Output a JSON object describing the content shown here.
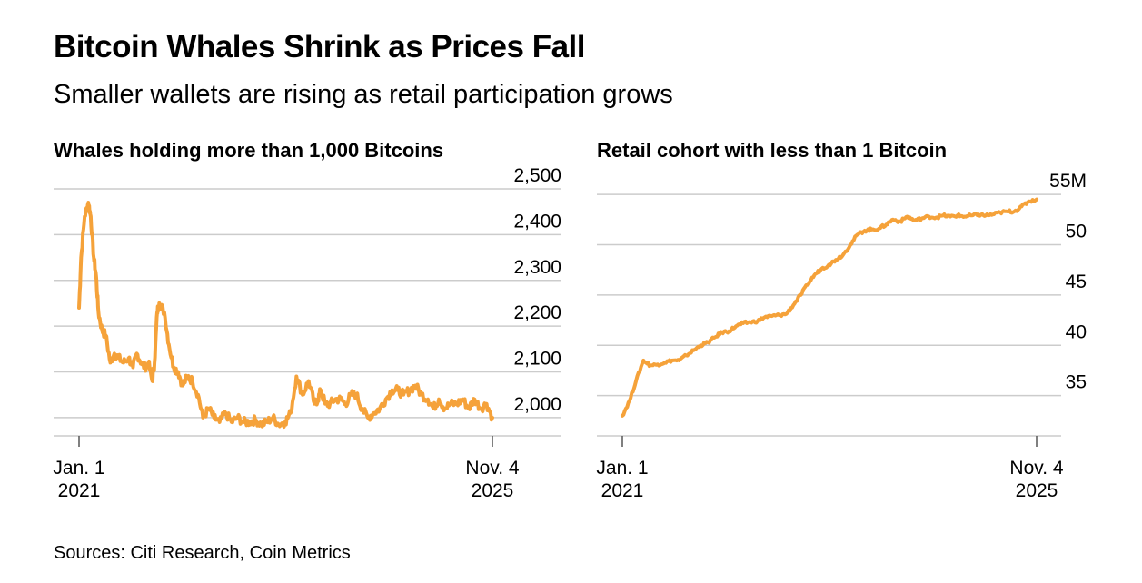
{
  "title": "Bitcoin Whales Shrink as Prices Fall",
  "subtitle": "Smaller wallets are rising as retail participation grows",
  "source": "Sources: Citi Research, Coin Metrics",
  "colors": {
    "line": "#F5A23A",
    "grid": "#cccccc",
    "axis": "#555555",
    "text": "#000000"
  },
  "chart_data": [
    {
      "type": "line",
      "title": "Whales holding more than 1,000 Bitcoins",
      "xlabel": "",
      "ylabel": "",
      "x_range": [
        "2021-01-01",
        "2025-11-04"
      ],
      "x_ticks": [
        {
          "line1": "Jan. 1",
          "line2": "2021"
        },
        {
          "line1": "Nov. 4",
          "line2": "2025"
        }
      ],
      "ylim": [
        1960,
        2510
      ],
      "y_ticks": [
        2000,
        2100,
        2200,
        2300,
        2400,
        2500
      ],
      "y_tick_labels": [
        "2,000",
        "2,100",
        "2,200",
        "2,300",
        "2,400",
        "2,500"
      ],
      "grid": true,
      "series": [
        {
          "x": [
            "2021-01-01",
            "2021-01-10",
            "2021-01-25",
            "2021-02-10",
            "2021-02-20",
            "2021-03-05",
            "2021-03-15",
            "2021-03-25",
            "2021-04-10",
            "2021-04-25",
            "2021-05-15",
            "2021-06-01",
            "2021-06-20",
            "2021-07-10",
            "2021-08-01",
            "2021-08-20",
            "2021-09-05",
            "2021-09-25",
            "2021-10-10",
            "2021-10-25",
            "2021-11-10",
            "2021-11-20",
            "2021-12-01",
            "2021-12-10",
            "2022-01-01",
            "2022-01-20",
            "2022-02-10",
            "2022-03-01",
            "2022-03-20",
            "2022-04-10",
            "2022-05-01",
            "2022-05-25",
            "2022-06-15",
            "2022-07-10",
            "2022-08-01",
            "2022-08-25",
            "2022-09-20",
            "2022-10-15",
            "2022-11-10",
            "2022-12-05",
            "2023-01-01",
            "2023-01-25",
            "2023-02-20",
            "2023-03-15",
            "2023-04-10",
            "2023-05-05",
            "2023-06-01",
            "2023-06-25",
            "2023-07-20",
            "2023-08-15",
            "2023-09-10",
            "2023-10-05",
            "2023-10-20",
            "2023-11-01",
            "2023-11-20",
            "2023-12-10",
            "2024-01-01",
            "2024-01-25",
            "2024-02-15",
            "2024-03-10",
            "2024-04-01",
            "2024-04-25",
            "2024-05-20",
            "2024-06-15",
            "2024-07-10",
            "2024-08-05",
            "2024-09-01",
            "2024-09-25",
            "2024-10-20",
            "2024-11-15",
            "2024-12-10",
            "2025-01-05",
            "2025-02-01",
            "2025-02-25",
            "2025-03-20",
            "2025-04-15",
            "2025-05-10",
            "2025-06-05",
            "2025-07-01",
            "2025-07-25",
            "2025-08-20",
            "2025-09-15",
            "2025-10-10",
            "2025-11-04"
          ],
          "y": [
            2240,
            2350,
            2440,
            2470,
            2440,
            2350,
            2310,
            2230,
            2190,
            2180,
            2120,
            2140,
            2130,
            2120,
            2130,
            2110,
            2140,
            2120,
            2110,
            2120,
            2080,
            2120,
            2230,
            2250,
            2230,
            2160,
            2110,
            2100,
            2070,
            2090,
            2080,
            2050,
            2000,
            2020,
            2000,
            1990,
            2010,
            1990,
            2000,
            1990,
            1990,
            1995,
            1985,
            1990,
            2000,
            1985,
            1990,
            2010,
            2090,
            2050,
            2080,
            2030,
            2040,
            2060,
            2030,
            2030,
            2040,
            2040,
            2030,
            2050,
            2050,
            2020,
            2000,
            2010,
            2020,
            2040,
            2060,
            2060,
            2050,
            2060,
            2070,
            2050,
            2040,
            2020,
            2040,
            2020,
            2030,
            2030,
            2040,
            2020,
            2040,
            2020,
            2030,
            2000
          ],
          "style_note": "noisy daily series, approximated"
        }
      ]
    },
    {
      "type": "line",
      "title": "Retail cohort with less than 1 Bitcoin",
      "xlabel": "",
      "ylabel": "",
      "x_range": [
        "2021-01-01",
        "2025-11-04"
      ],
      "x_ticks": [
        {
          "line1": "Jan. 1",
          "line2": "2021"
        },
        {
          "line1": "Nov. 4",
          "line2": "2025"
        }
      ],
      "ylim": [
        31,
        56
      ],
      "y_ticks": [
        35,
        40,
        45,
        50,
        55
      ],
      "y_tick_labels": [
        "35",
        "40",
        "45",
        "50",
        "55M"
      ],
      "grid": true,
      "series": [
        {
          "x": [
            "2021-01-01",
            "2021-02-01",
            "2021-03-01",
            "2021-04-01",
            "2021-05-01",
            "2021-06-01",
            "2021-07-01",
            "2021-08-01",
            "2021-09-01",
            "2021-10-01",
            "2021-11-01",
            "2021-12-01",
            "2022-01-01",
            "2022-02-01",
            "2022-03-01",
            "2022-04-01",
            "2022-05-01",
            "2022-06-01",
            "2022-07-01",
            "2022-08-01",
            "2022-09-01",
            "2022-10-01",
            "2022-11-01",
            "2022-12-01",
            "2023-01-01",
            "2023-02-01",
            "2023-03-01",
            "2023-04-01",
            "2023-05-01",
            "2023-06-01",
            "2023-07-01",
            "2023-08-01",
            "2023-09-01",
            "2023-10-01",
            "2023-11-01",
            "2023-12-01",
            "2024-01-01",
            "2024-02-01",
            "2024-03-01",
            "2024-04-01",
            "2024-05-01",
            "2024-06-01",
            "2024-07-01",
            "2024-08-01",
            "2024-09-01",
            "2024-10-01",
            "2024-11-01",
            "2024-12-01",
            "2025-01-01",
            "2025-02-01",
            "2025-03-01",
            "2025-04-01",
            "2025-05-01",
            "2025-06-01",
            "2025-07-01",
            "2025-08-01",
            "2025-09-01",
            "2025-10-01",
            "2025-11-04"
          ],
          "y": [
            33,
            34.5,
            36.5,
            38.5,
            38,
            38.1,
            38.3,
            38.5,
            38.5,
            39,
            39.5,
            40,
            40.3,
            40.8,
            41.3,
            41.4,
            41.9,
            42.2,
            42.3,
            42.4,
            42.8,
            42.9,
            43,
            43.1,
            44,
            45,
            46,
            47,
            47.6,
            48,
            48.5,
            49,
            50,
            51,
            51.4,
            51.5,
            51.6,
            52,
            52.5,
            52.3,
            52.8,
            52.4,
            52.6,
            52.8,
            52.7,
            52.9,
            52.8,
            52.9,
            52.8,
            52.9,
            53,
            52.9,
            53,
            53.2,
            53.3,
            53.3,
            53.8,
            54.3,
            54.5
          ],
          "style_note": "noisy daily series, approximated"
        }
      ]
    }
  ]
}
